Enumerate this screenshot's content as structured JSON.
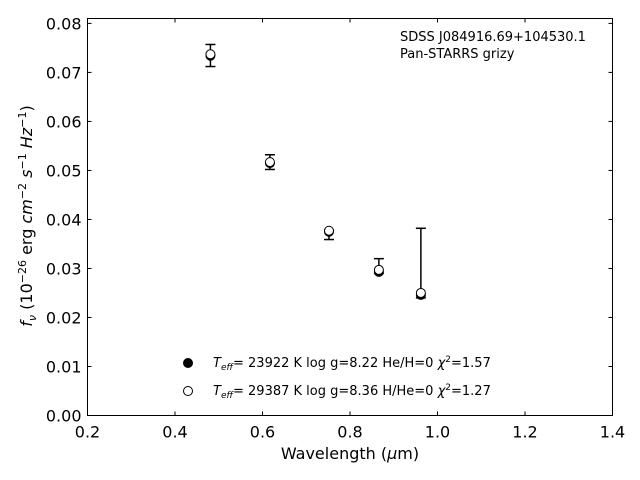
{
  "chart_data": {
    "type": "scatter",
    "xlabel": "Wavelength (μm)",
    "ylabel": "f_ν (10^-26 erg cm^-2 s^-1 Hz^-1)",
    "xlim": [
      0.2,
      1.4
    ],
    "ylim": [
      0.0,
      0.081
    ],
    "xticks": [
      "0.2",
      "0.4",
      "0.6",
      "0.8",
      "1.0",
      "1.2",
      "1.4"
    ],
    "yticks": [
      "0.00",
      "0.01",
      "0.02",
      "0.03",
      "0.04",
      "0.05",
      "0.06",
      "0.07",
      "0.08"
    ],
    "grid": false,
    "annotations": [
      "SDSS J084916.69+104530.1",
      "Pan-STARRS grizy"
    ],
    "observed": {
      "x": [
        0.481,
        0.617,
        0.752,
        0.866,
        0.962
      ],
      "y": [
        0.0735,
        0.0517,
        0.0376,
        0.0298,
        0.0245
      ],
      "err_low": [
        0.0712,
        0.0502,
        0.0359,
        0.029,
        0.024
      ],
      "err_high": [
        0.0757,
        0.0532,
        0.0378,
        0.032,
        0.0382
      ]
    },
    "series": [
      {
        "name": "T_eff= 23922 K  log g=8.22  He/H=0  χ²=1.57",
        "marker": "filled-circle",
        "x": [
          0.481,
          0.617,
          0.752,
          0.866,
          0.962
        ],
        "y": [
          0.0734,
          0.0515,
          0.0375,
          0.0293,
          0.0246
        ]
      },
      {
        "name": "T_eff= 29387 K  log g=8.36  H/He=0  χ²=1.27",
        "marker": "open-circle",
        "x": [
          0.481,
          0.617,
          0.752,
          0.866,
          0.962
        ],
        "y": [
          0.0737,
          0.0517,
          0.0377,
          0.0297,
          0.025
        ]
      }
    ],
    "legend_placement": "lower-center"
  }
}
